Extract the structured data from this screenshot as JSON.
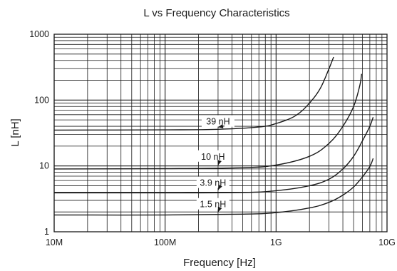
{
  "chart_data": {
    "type": "line",
    "title": "L vs Frequency Characteristics",
    "xlabel": "Frequency [Hz]",
    "ylabel": "L [nH]",
    "x_scale": "log",
    "y_scale": "log",
    "xlim": [
      10000000,
      10000000000
    ],
    "ylim": [
      1,
      1000
    ],
    "x_ticks": [
      {
        "value": 10000000,
        "label": "10M"
      },
      {
        "value": 100000000,
        "label": "100M"
      },
      {
        "value": 1000000000,
        "label": "1G"
      },
      {
        "value": 10000000000,
        "label": "10G"
      }
    ],
    "y_ticks": [
      {
        "value": 1,
        "label": "1"
      },
      {
        "value": 10,
        "label": "10"
      },
      {
        "value": 100,
        "label": "100"
      },
      {
        "value": 1000,
        "label": "1000"
      }
    ],
    "grid": true,
    "line_color": "#1a1a1a",
    "series": [
      {
        "name": "39 nH",
        "points": [
          [
            10000000,
            35
          ],
          [
            100000000,
            35.3
          ],
          [
            300000000,
            36
          ],
          [
            700000000,
            39
          ],
          [
            1000000000,
            44
          ],
          [
            1500000000,
            58
          ],
          [
            2000000000,
            90
          ],
          [
            2500000000,
            150
          ],
          [
            3000000000,
            300
          ],
          [
            3300000000,
            450
          ]
        ]
      },
      {
        "name": "10 nH",
        "points": [
          [
            10000000,
            9
          ],
          [
            100000000,
            9.1
          ],
          [
            500000000,
            9.4
          ],
          [
            1000000000,
            10.3
          ],
          [
            2000000000,
            14
          ],
          [
            3000000000,
            22
          ],
          [
            4000000000,
            40
          ],
          [
            5000000000,
            80
          ],
          [
            5700000000,
            170
          ],
          [
            5900000000,
            250
          ]
        ]
      },
      {
        "name": "3.9 nH",
        "points": [
          [
            10000000,
            3.9
          ],
          [
            100000000,
            3.9
          ],
          [
            500000000,
            3.95
          ],
          [
            1000000000,
            4.2
          ],
          [
            2000000000,
            5.0
          ],
          [
            3000000000,
            6.3
          ],
          [
            4000000000,
            9
          ],
          [
            5000000000,
            14
          ],
          [
            6000000000,
            24
          ],
          [
            7000000000,
            40
          ],
          [
            7500000000,
            55
          ]
        ]
      },
      {
        "name": "1.5 nH",
        "points": [
          [
            10000000,
            1.8
          ],
          [
            100000000,
            1.8
          ],
          [
            500000000,
            1.85
          ],
          [
            1000000000,
            1.95
          ],
          [
            2000000000,
            2.3
          ],
          [
            3000000000,
            2.8
          ],
          [
            4000000000,
            3.6
          ],
          [
            5000000000,
            4.8
          ],
          [
            6000000000,
            6.8
          ],
          [
            7000000000,
            9.8
          ],
          [
            7500000000,
            13
          ]
        ]
      }
    ],
    "annotations": [
      {
        "text": "39 nH",
        "series": "39 nH",
        "label_f": 300000000,
        "label_L": 47,
        "arrow_to_f": 300000000,
        "arrow_to_L": 36
      },
      {
        "text": "10 nH",
        "series": "10 nH",
        "label_f": 270000000,
        "label_L": 13.8,
        "arrow_to_f": 300000000,
        "arrow_to_L": 9.5
      },
      {
        "text": "3.9 nH",
        "series": "3.9 nH",
        "label_f": 270000000,
        "label_L": 5.5,
        "arrow_to_f": 300000000,
        "arrow_to_L": 4.0
      },
      {
        "text": "1.5 nH",
        "series": "1.5 nH",
        "label_f": 270000000,
        "label_L": 2.6,
        "arrow_to_f": 300000000,
        "arrow_to_L": 1.85
      }
    ]
  }
}
